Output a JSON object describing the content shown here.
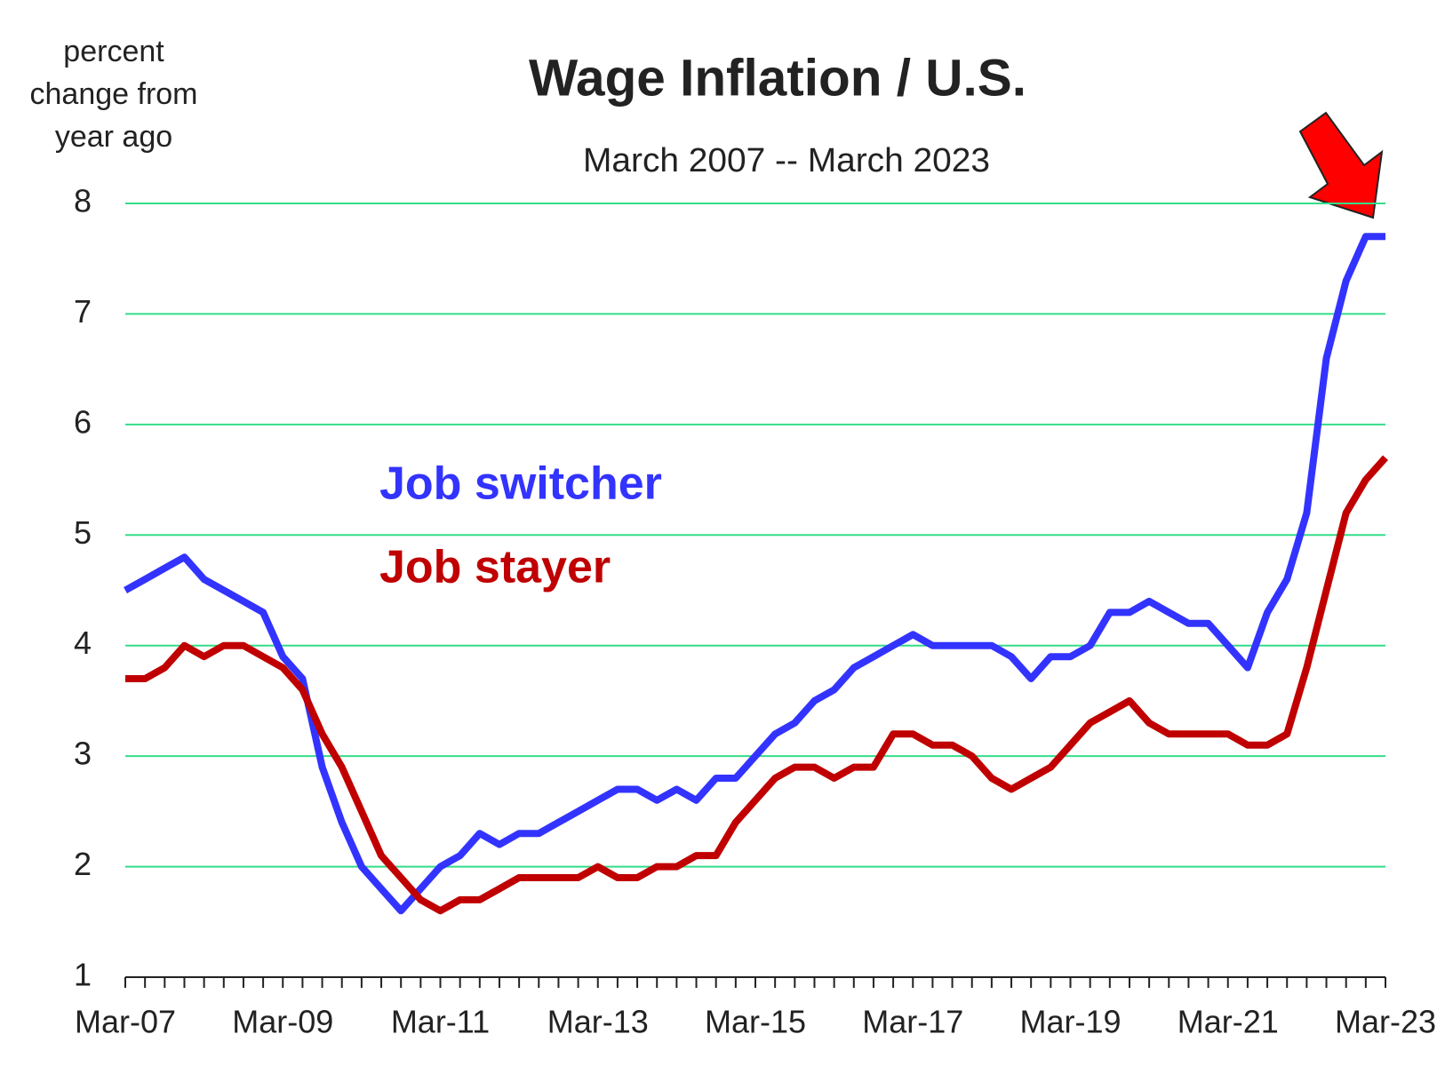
{
  "chart_data": {
    "type": "line",
    "title": "Wage Inflation / U.S.",
    "subtitle": "March 2007 -- March 2023",
    "y_label": [
      "percent",
      "change  from",
      "year ago"
    ],
    "categories": [
      "Mar-07",
      null,
      null,
      null,
      null,
      null,
      null,
      null,
      "Mar-09",
      null,
      null,
      null,
      null,
      null,
      null,
      null,
      "Mar-11",
      null,
      null,
      null,
      null,
      null,
      null,
      null,
      "Mar-13",
      null,
      null,
      null,
      null,
      null,
      null,
      null,
      "Mar-15",
      null,
      null,
      null,
      null,
      null,
      null,
      null,
      "Mar-17",
      null,
      null,
      null,
      null,
      null,
      null,
      null,
      "Mar-19",
      null,
      null,
      null,
      null,
      null,
      null,
      null,
      "Mar-21",
      null,
      null,
      null,
      null,
      null,
      null,
      null,
      "Mar-23"
    ],
    "series": [
      {
        "name": "Job switcher",
        "color": "#3333ff",
        "values": [
          4.5,
          4.6,
          4.7,
          4.8,
          4.6,
          4.5,
          4.4,
          4.3,
          3.9,
          3.7,
          2.9,
          2.4,
          2.0,
          1.8,
          1.6,
          1.8,
          2.0,
          2.1,
          2.3,
          2.2,
          2.3,
          2.3,
          2.4,
          2.5,
          2.6,
          2.7,
          2.7,
          2.6,
          2.7,
          2.6,
          2.8,
          2.8,
          3.0,
          3.2,
          3.3,
          3.5,
          3.6,
          3.8,
          3.9,
          4.0,
          4.1,
          4.0,
          4.0,
          4.0,
          4.0,
          3.9,
          3.7,
          3.9,
          3.9,
          4.0,
          4.3,
          4.3,
          4.4,
          4.3,
          4.2,
          4.2,
          4.0,
          3.8,
          4.3,
          4.6,
          5.2,
          6.6,
          7.3,
          7.7,
          7.7
        ]
      },
      {
        "name": "Job stayer",
        "color": "#c00000",
        "values": [
          3.7,
          3.7,
          3.8,
          4.0,
          3.9,
          4.0,
          4.0,
          3.9,
          3.8,
          3.6,
          3.2,
          2.9,
          2.5,
          2.1,
          1.9,
          1.7,
          1.6,
          1.7,
          1.7,
          1.8,
          1.9,
          1.9,
          1.9,
          1.9,
          2.0,
          1.9,
          1.9,
          2.0,
          2.0,
          2.1,
          2.1,
          2.4,
          2.6,
          2.8,
          2.9,
          2.9,
          2.8,
          2.9,
          2.9,
          3.2,
          3.2,
          3.1,
          3.1,
          3.0,
          2.8,
          2.7,
          2.8,
          2.9,
          3.1,
          3.3,
          3.4,
          3.5,
          3.3,
          3.2,
          3.2,
          3.2,
          3.2,
          3.1,
          3.1,
          3.2,
          3.8,
          4.5,
          5.2,
          5.5,
          5.7
        ]
      }
    ],
    "ylim": [
      1,
      8
    ],
    "yticks": [
      1,
      2,
      3,
      4,
      5,
      6,
      7,
      8
    ],
    "grid": true,
    "grid_color": "#33dd88"
  }
}
